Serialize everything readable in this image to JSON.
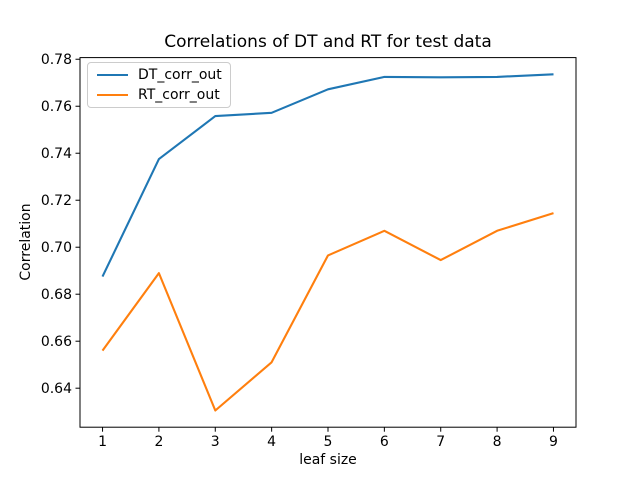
{
  "chart_data": {
    "type": "line",
    "title": "Correlations of DT and RT for test data",
    "xlabel": "leaf size",
    "ylabel": "Correlation",
    "x": [
      1,
      2,
      3,
      4,
      5,
      6,
      7,
      8,
      9
    ],
    "series": [
      {
        "name": "DT_corr_out",
        "color": "#1f77b4",
        "values": [
          0.6875,
          0.7375,
          0.7558,
          0.7572,
          0.7672,
          0.7725,
          0.7723,
          0.7725,
          0.7736
        ]
      },
      {
        "name": "RT_corr_out",
        "color": "#ff7f0e",
        "values": [
          0.656,
          0.689,
          0.6305,
          0.651,
          0.6965,
          0.707,
          0.6945,
          0.707,
          0.7145
        ]
      }
    ],
    "xlim": [
      0.6,
      9.4
    ],
    "ylim": [
      0.6234,
      0.7807
    ],
    "xticks": [
      1,
      2,
      3,
      4,
      5,
      6,
      7,
      8,
      9
    ],
    "xtick_labels": [
      "1",
      "2",
      "3",
      "4",
      "5",
      "6",
      "7",
      "8",
      "9"
    ],
    "yticks": [
      0.64,
      0.66,
      0.68,
      0.7,
      0.72,
      0.74,
      0.76,
      0.78
    ],
    "ytick_labels": [
      "0.64",
      "0.66",
      "0.68",
      "0.70",
      "0.72",
      "0.74",
      "0.76",
      "0.78"
    ],
    "legend_position": "upper-left",
    "grid": false,
    "axis_color": "#000000"
  }
}
